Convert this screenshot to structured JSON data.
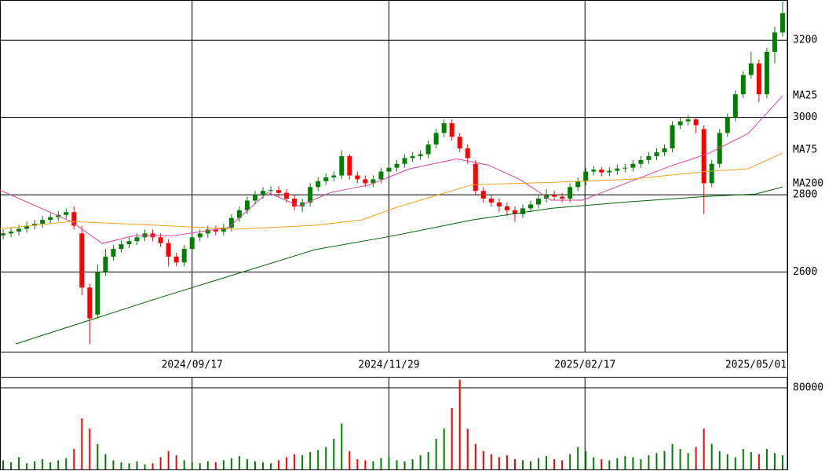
{
  "chart_data": [
    {
      "type": "candlestick",
      "xlim": [
        0,
        100
      ],
      "xticks": [
        {
          "value": 24.4,
          "label": "2024/09/17"
        },
        {
          "value": 49.4,
          "label": "2024/11/29"
        },
        {
          "value": 74.3,
          "label": "2025/02/17"
        },
        {
          "value": 100,
          "label": "2025/05/01"
        }
      ],
      "ylim": [
        2394,
        3304
      ],
      "yticks": [
        2600,
        2800,
        3000,
        3200
      ],
      "grid": true,
      "up_color": "#008000",
      "down_color": "#ff0000",
      "open": [
        2695,
        2700,
        2705,
        2712,
        2720,
        2725,
        2735,
        2742,
        2748,
        2755,
        2700,
        2560,
        2490,
        2600,
        2640,
        2660,
        2672,
        2680,
        2690,
        2700,
        2690,
        2675,
        2640,
        2625,
        2660,
        2690,
        2700,
        2710,
        2705,
        2715,
        2740,
        2760,
        2785,
        2800,
        2810,
        2812,
        2805,
        2790,
        2770,
        2780,
        2820,
        2835,
        2845,
        2850,
        2900,
        2850,
        2840,
        2830,
        2840,
        2860,
        2870,
        2880,
        2895,
        2900,
        2905,
        2930,
        2960,
        2985,
        2950,
        2920,
        2880,
        2810,
        2790,
        2780,
        2770,
        2760,
        2750,
        2765,
        2775,
        2790,
        2800,
        2795,
        2790,
        2820,
        2835,
        2860,
        2865,
        2858,
        2862,
        2868,
        2870,
        2880,
        2890,
        2900,
        2910,
        2920,
        2980,
        2990,
        2995,
        2970,
        2830,
        2880,
        2960,
        3000,
        3060,
        3110,
        3140,
        3060,
        3170,
        3220
      ],
      "high": [
        2710,
        2715,
        2722,
        2730,
        2735,
        2745,
        2752,
        2758,
        2765,
        2770,
        2720,
        2570,
        2620,
        2660,
        2670,
        2682,
        2690,
        2700,
        2710,
        2710,
        2700,
        2685,
        2650,
        2670,
        2700,
        2710,
        2720,
        2720,
        2725,
        2750,
        2770,
        2795,
        2810,
        2820,
        2822,
        2822,
        2815,
        2800,
        2790,
        2830,
        2845,
        2855,
        2860,
        2915,
        2905,
        2860,
        2850,
        2850,
        2870,
        2880,
        2890,
        2905,
        2910,
        2915,
        2940,
        2970,
        2995,
        2995,
        2960,
        2930,
        2890,
        2820,
        2800,
        2790,
        2780,
        2770,
        2775,
        2785,
        2800,
        2815,
        2810,
        2805,
        2830,
        2845,
        2870,
        2875,
        2872,
        2872,
        2878,
        2880,
        2890,
        2900,
        2910,
        2920,
        2930,
        2990,
        3000,
        3005,
        3000,
        2980,
        2890,
        2970,
        3010,
        3070,
        3120,
        3170,
        3150,
        3180,
        3235,
        3300
      ],
      "low": [
        2685,
        2690,
        2695,
        2702,
        2710,
        2715,
        2725,
        2732,
        2738,
        2710,
        2540,
        2414,
        2480,
        2590,
        2630,
        2650,
        2662,
        2670,
        2680,
        2680,
        2665,
        2615,
        2615,
        2615,
        2650,
        2680,
        2690,
        2695,
        2695,
        2705,
        2730,
        2750,
        2775,
        2790,
        2800,
        2795,
        2780,
        2760,
        2755,
        2770,
        2810,
        2825,
        2835,
        2840,
        2840,
        2830,
        2820,
        2820,
        2830,
        2850,
        2860,
        2870,
        2885,
        2890,
        2895,
        2920,
        2950,
        2940,
        2910,
        2880,
        2800,
        2780,
        2770,
        2755,
        2745,
        2730,
        2740,
        2755,
        2765,
        2780,
        2785,
        2780,
        2780,
        2810,
        2825,
        2850,
        2848,
        2848,
        2852,
        2858,
        2860,
        2870,
        2880,
        2890,
        2900,
        2910,
        2970,
        2980,
        2960,
        2750,
        2820,
        2870,
        2950,
        2990,
        3050,
        3100,
        3040,
        3050,
        3140,
        3210
      ],
      "close": [
        2700,
        2705,
        2712,
        2720,
        2725,
        2735,
        2742,
        2748,
        2755,
        2720,
        2560,
        2480,
        2600,
        2640,
        2660,
        2672,
        2680,
        2690,
        2700,
        2690,
        2675,
        2640,
        2625,
        2660,
        2690,
        2700,
        2710,
        2705,
        2715,
        2740,
        2760,
        2785,
        2800,
        2810,
        2812,
        2805,
        2790,
        2770,
        2780,
        2820,
        2835,
        2845,
        2850,
        2900,
        2850,
        2840,
        2830,
        2840,
        2860,
        2870,
        2880,
        2895,
        2900,
        2905,
        2930,
        2960,
        2985,
        2950,
        2920,
        2895,
        2810,
        2790,
        2780,
        2770,
        2760,
        2750,
        2765,
        2775,
        2790,
        2800,
        2795,
        2790,
        2820,
        2835,
        2860,
        2865,
        2858,
        2862,
        2868,
        2870,
        2880,
        2890,
        2900,
        2910,
        2920,
        2980,
        2990,
        2995,
        2980,
        2830,
        2880,
        2960,
        3000,
        3060,
        3110,
        3140,
        3060,
        3170,
        3220,
        3270
      ],
      "series": [
        {
          "name": "MA25",
          "color": "#e0409c",
          "x": [
            0,
            9,
            13,
            17,
            22,
            29,
            34,
            38,
            42,
            47,
            52,
            58,
            62,
            66,
            70,
            74,
            79,
            85,
            90,
            95,
            99.4
          ],
          "values": [
            2812,
            2731,
            2674,
            2694,
            2694,
            2715,
            2806,
            2771,
            2806,
            2826,
            2867,
            2893,
            2877,
            2840,
            2786,
            2786,
            2826,
            2873,
            2907,
            2958,
            3056
          ]
        },
        {
          "name": "MA75",
          "color": "#f0a020",
          "x": [
            0,
            9,
            20,
            30,
            40,
            46,
            50,
            55,
            60,
            70,
            80,
            90,
            95,
            99.4
          ],
          "values": [
            2712,
            2731,
            2721,
            2711,
            2721,
            2735,
            2765,
            2796,
            2826,
            2832,
            2840,
            2861,
            2867,
            2908
          ]
        },
        {
          "name": "MA200",
          "color": "#006400",
          "x": [
            2,
            20,
            40,
            50,
            60,
            70,
            80,
            90,
            96,
            99.4
          ],
          "values": [
            2414,
            2532,
            2658,
            2694,
            2735,
            2765,
            2782,
            2796,
            2802,
            2820
          ]
        }
      ]
    },
    {
      "type": "bar",
      "ylim": [
        0,
        90000
      ],
      "yticks": [
        80000
      ],
      "values": [
        9000,
        7000,
        12000,
        6000,
        8000,
        10000,
        7000,
        9000,
        11000,
        20000,
        50000,
        40000,
        25000,
        15000,
        9000,
        7000,
        6000,
        8000,
        5000,
        6000,
        12000,
        18000,
        14000,
        9000,
        7000,
        6000,
        8000,
        7000,
        9000,
        11000,
        13000,
        10000,
        8000,
        7000,
        6000,
        9000,
        12000,
        15000,
        14000,
        17000,
        19000,
        22000,
        30000,
        45000,
        18000,
        10000,
        9000,
        8000,
        11000,
        12000,
        9000,
        8000,
        10000,
        14000,
        17000,
        30000,
        40000,
        60000,
        88000,
        40000,
        25000,
        18000,
        15000,
        12000,
        14000,
        10000,
        9000,
        8000,
        11000,
        13000,
        10000,
        9000,
        15000,
        22000,
        18000,
        12000,
        10000,
        9000,
        11000,
        13000,
        12000,
        10000,
        14000,
        16000,
        18000,
        25000,
        20000,
        16000,
        22000,
        40000,
        25000,
        18000,
        15000,
        12000,
        20000,
        17000,
        15000,
        20000,
        16000,
        14000
      ]
    }
  ]
}
